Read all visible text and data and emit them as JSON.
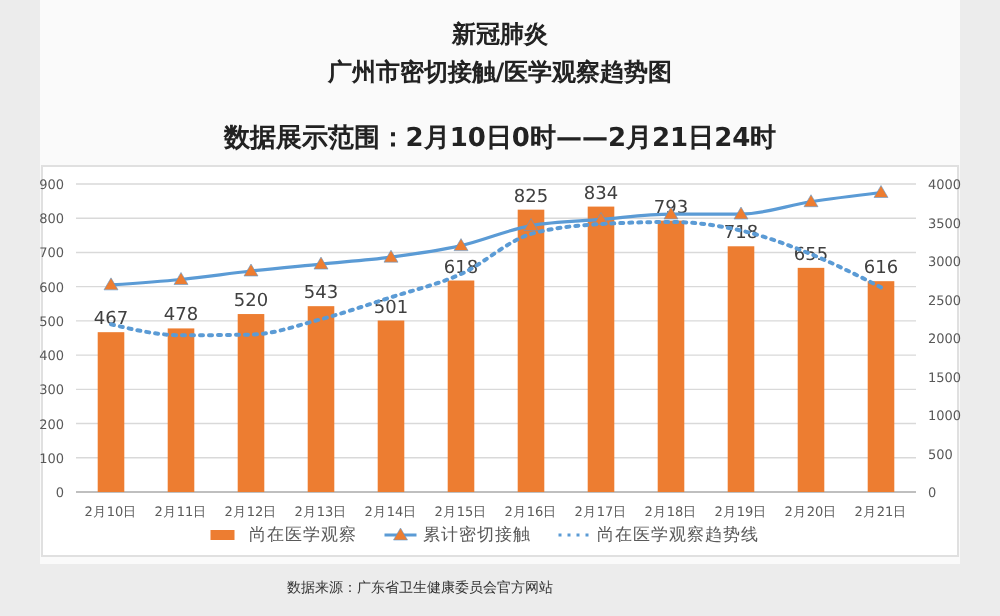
{
  "chart_data": {
    "type": "bar",
    "title": "新冠肺炎",
    "subtitle": "广州市密切接触/医学观察趋势图",
    "annotations": [
      "数据展示范围：2月10日0时——2月21日24时",
      "数据来源：广东省卫生健康委员会官方网站"
    ],
    "categories": [
      "2月10日",
      "2月11日",
      "2月12日",
      "2月13日",
      "2月14日",
      "2月15日",
      "2月16日",
      "2月17日",
      "2月18日",
      "2月19日",
      "2月20日",
      "2月21日"
    ],
    "series": [
      {
        "name": "尚在医学观察",
        "color": "#ed7d31",
        "values": [
          467,
          478,
          520,
          543,
          501,
          618,
          825,
          834,
          793,
          718,
          655,
          616
        ],
        "value_labels": [
          "467",
          "478",
          "520",
          "543",
          "501",
          "618",
          "825",
          "834",
          "793",
          "718",
          "655",
          "616"
        ]
      },
      {
        "name": "累计密切接触",
        "type": "line",
        "axis": "y2",
        "color": "#5b9bd5",
        "marker": "triangle",
        "line_style": "solid",
        "values": [
          2690,
          2760,
          2870,
          2960,
          3050,
          3200,
          3460,
          3540,
          3610,
          3610,
          3770,
          3890
        ]
      },
      {
        "name": "尚在医学观察趋势线",
        "type": "line",
        "color": "#5b9bd5",
        "marker": "none",
        "line_style": "dotted",
        "values": [
          490,
          458,
          460,
          505,
          569,
          637,
          754,
          783,
          789,
          764,
          695,
          598
        ]
      }
    ],
    "ylim": [
      0,
      900
    ],
    "yticks": [
      0,
      100,
      200,
      300,
      400,
      500,
      600,
      700,
      800,
      900
    ],
    "y2lim": [
      0,
      4000
    ],
    "y2ticks": [
      0,
      500,
      1000,
      1500,
      2000,
      2500,
      3000,
      3500,
      4000
    ],
    "grid": "y",
    "legend": "bottom"
  }
}
